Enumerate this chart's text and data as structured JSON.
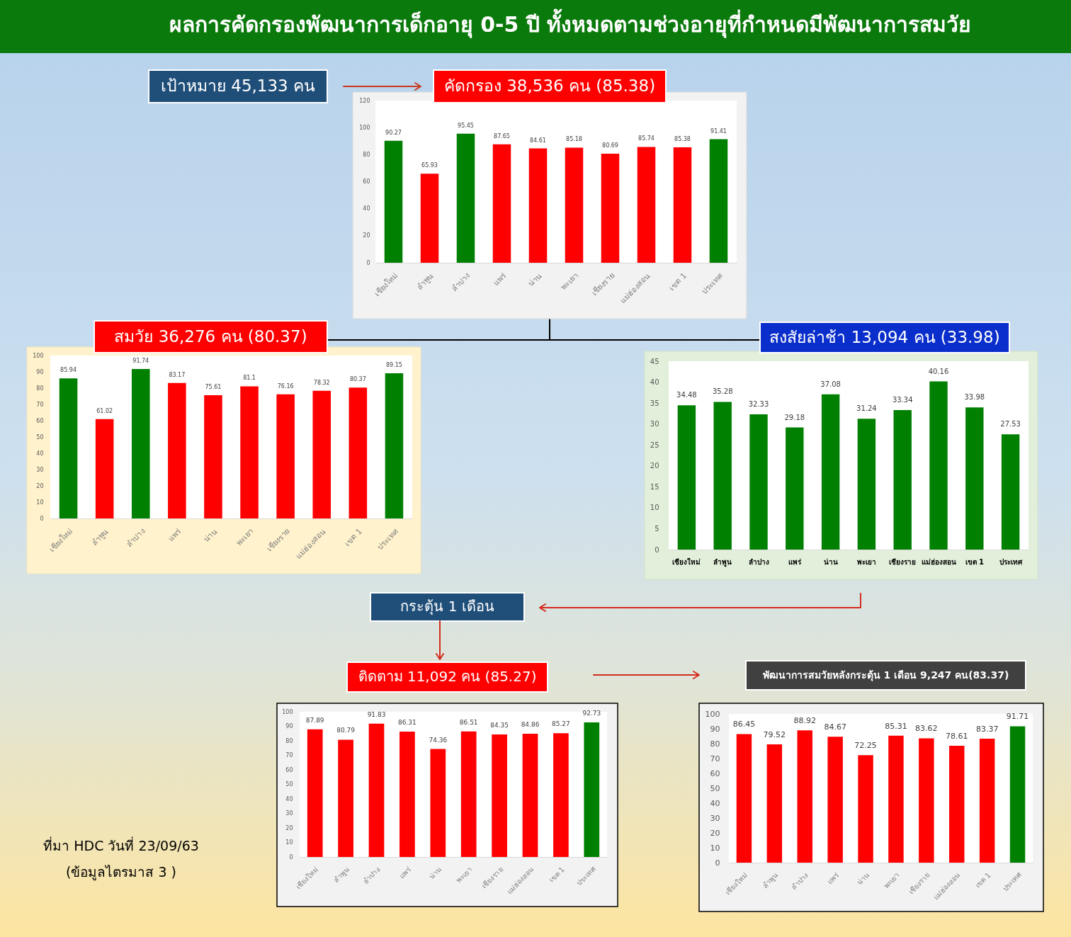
{
  "chart_data": [
    {
      "type": "other",
      "title": "ผลการคัดกรองพัฒนาการเด็กอายุ 0-5 ปี ทั้งหมดตามช่วงอายุที่กำหนดมีพัฒนาการสมวัย",
      "annotations": [
        "เป้าหมาย 45,133 คน",
        "กระตุ้น 1 เดือน",
        "ที่มา HDC วันที่ 23/09/63",
        "(ข้อมูลไตรมาส 3 )"
      ]
    },
    {
      "type": "bar",
      "title": "คัดกรอง 38,536 คน (85.38)",
      "categories": [
        "เชียงใหม่",
        "ลำพูน",
        "ลำปาง",
        "แพร่",
        "น่าน",
        "พะเยา",
        "เชียงราย",
        "แม่ฮ่องสอน",
        "เขต 1",
        "ประเทศ"
      ],
      "values": [
        90.27,
        65.93,
        95.45,
        87.65,
        84.61,
        85.18,
        80.69,
        85.74,
        85.38,
        91.41
      ],
      "colors": [
        "#008000",
        "#ff0000",
        "#008000",
        "#ff0000",
        "#ff0000",
        "#ff0000",
        "#ff0000",
        "#ff0000",
        "#ff0000",
        "#008000"
      ],
      "ylim": [
        0,
        120
      ],
      "yticks": [
        0,
        20,
        40,
        60,
        80,
        100,
        120
      ],
      "data_labels": true
    },
    {
      "type": "bar",
      "title": "สมวัย 36,276 คน (80.37)",
      "categories": [
        "เชียงใหม่",
        "ลำพูน",
        "ลำปาง",
        "แพร่",
        "น่าน",
        "พะเยา",
        "เชียงราย",
        "แม่ฮ่องสอน",
        "เขต 1",
        "ประเทศ"
      ],
      "values": [
        85.94,
        61.02,
        91.74,
        83.17,
        75.61,
        81.1,
        76.16,
        78.32,
        80.37,
        89.15
      ],
      "colors": [
        "#008000",
        "#ff0000",
        "#008000",
        "#ff0000",
        "#ff0000",
        "#ff0000",
        "#ff0000",
        "#ff0000",
        "#ff0000",
        "#008000"
      ],
      "ylim": [
        0,
        100
      ],
      "yticks": [
        0,
        10,
        20,
        30,
        40,
        50,
        60,
        70,
        80,
        90,
        100
      ],
      "data_labels": true
    },
    {
      "type": "bar",
      "title": "สงสัยล่าช้า 13,094 คน (33.98)",
      "categories": [
        "เชียงใหม่",
        "ลำพูน",
        "ลำปาง",
        "แพร่",
        "น่าน",
        "พะเยา",
        "เชียงราย",
        "แม่ฮ่องสอน",
        "เขต 1",
        "ประเทศ"
      ],
      "values": [
        34.48,
        35.28,
        32.33,
        29.18,
        37.08,
        31.24,
        33.34,
        40.16,
        33.98,
        27.53
      ],
      "colors": [
        "#008000",
        "#008000",
        "#008000",
        "#008000",
        "#008000",
        "#008000",
        "#008000",
        "#008000",
        "#008000",
        "#008000"
      ],
      "ylim": [
        0,
        45
      ],
      "yticks": [
        0,
        5,
        10,
        15,
        20,
        25,
        30,
        35,
        40,
        45
      ],
      "data_labels": true
    },
    {
      "type": "bar",
      "title": "ติดตาม 11,092 คน (85.27)",
      "categories": [
        "เชียงใหม่",
        "ลำพูน",
        "ลำปาง",
        "แพร่",
        "น่าน",
        "พะเยา",
        "เชียงราย",
        "แม่ฮ่องสอน",
        "เขต 1",
        "ประเทศ"
      ],
      "values": [
        87.89,
        80.79,
        91.83,
        86.31,
        74.36,
        86.51,
        84.35,
        84.86,
        85.27,
        92.73
      ],
      "colors": [
        "#ff0000",
        "#ff0000",
        "#ff0000",
        "#ff0000",
        "#ff0000",
        "#ff0000",
        "#ff0000",
        "#ff0000",
        "#ff0000",
        "#008000"
      ],
      "ylim": [
        0,
        100
      ],
      "yticks": [
        0,
        10,
        20,
        30,
        40,
        50,
        60,
        70,
        80,
        90,
        100
      ],
      "data_labels": true
    },
    {
      "type": "bar",
      "title": "พัฒนาการสมวัยหลังกระตุ้น 1 เดือน 9,247 คน(83.37)",
      "categories": [
        "เชียงใหม่",
        "ลำพูน",
        "ลำปาง",
        "แพร่",
        "น่าน",
        "พะเยา",
        "เชียงราย",
        "แม่ฮ่องสอน",
        "เขต 1",
        "ประเทศ"
      ],
      "values": [
        86.45,
        79.52,
        88.92,
        84.67,
        72.25,
        85.31,
        83.62,
        78.61,
        83.37,
        91.71
      ],
      "colors": [
        "#ff0000",
        "#ff0000",
        "#ff0000",
        "#ff0000",
        "#ff0000",
        "#ff0000",
        "#ff0000",
        "#ff0000",
        "#ff0000",
        "#008000"
      ],
      "ylim": [
        0,
        100
      ],
      "yticks": [
        0,
        10,
        20,
        30,
        40,
        50,
        60,
        70,
        80,
        90,
        100
      ],
      "data_labels": true
    }
  ]
}
